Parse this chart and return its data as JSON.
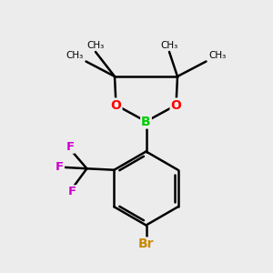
{
  "background_color": "#ececec",
  "bond_color": "#000000",
  "bond_width": 1.8,
  "atom_colors": {
    "B": "#00cc00",
    "O": "#ff0000",
    "F": "#cc00cc",
    "Br": "#cc8800",
    "C": "#000000"
  },
  "fig_size": [
    3.0,
    3.0
  ],
  "dpi": 100,
  "xlim": [
    0,
    10
  ],
  "ylim": [
    0,
    10
  ]
}
